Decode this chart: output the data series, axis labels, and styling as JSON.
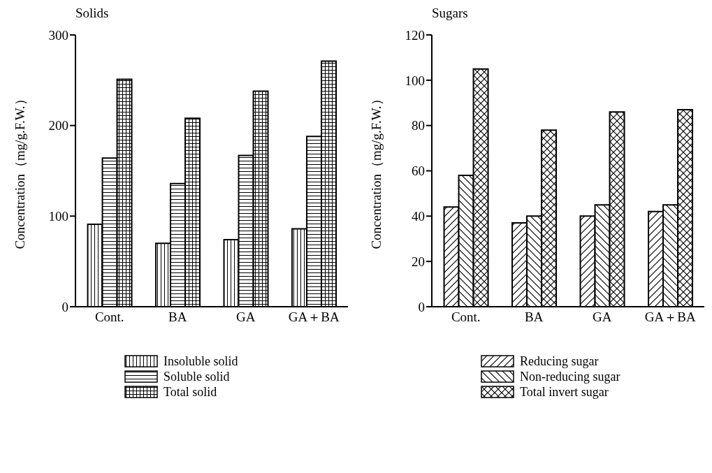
{
  "chart_data": [
    {
      "type": "bar",
      "title": "Solids",
      "ylabel": "Concentration（mg/g.F.W.）",
      "categories": [
        "Cont.",
        "BA",
        "GA",
        "GA＋BA"
      ],
      "series": [
        {
          "name": "Insoluble solid",
          "color": "#000000",
          "values": [
            91,
            70,
            74,
            86
          ]
        },
        {
          "name": "Soluble solid",
          "color": "#000000",
          "values": [
            164,
            136,
            167,
            188
          ]
        },
        {
          "name": "Total solid",
          "color": "#000000",
          "values": [
            251,
            208,
            238,
            271
          ]
        }
      ],
      "ylim": [
        0,
        300
      ],
      "yticks": [
        0,
        100,
        200,
        300
      ],
      "grid": false,
      "legend": "bottom"
    },
    {
      "type": "bar",
      "title": "Sugars",
      "ylabel": "Concentration（mg/g.F.W.）",
      "categories": [
        "Cont.",
        "BA",
        "GA",
        "GA＋BA"
      ],
      "series": [
        {
          "name": "Reducing sugar",
          "color": "#000000",
          "values": [
            44,
            37,
            40,
            42
          ]
        },
        {
          "name": "Non-reducing sugar",
          "color": "#000000",
          "values": [
            58,
            40,
            45,
            45
          ]
        },
        {
          "name": "Total invert sugar",
          "color": "#000000",
          "values": [
            105,
            78,
            86,
            87
          ]
        }
      ],
      "ylim": [
        0,
        120
      ],
      "yticks": [
        0,
        20,
        40,
        60,
        80,
        100,
        120
      ],
      "grid": false,
      "legend": "bottom"
    }
  ]
}
